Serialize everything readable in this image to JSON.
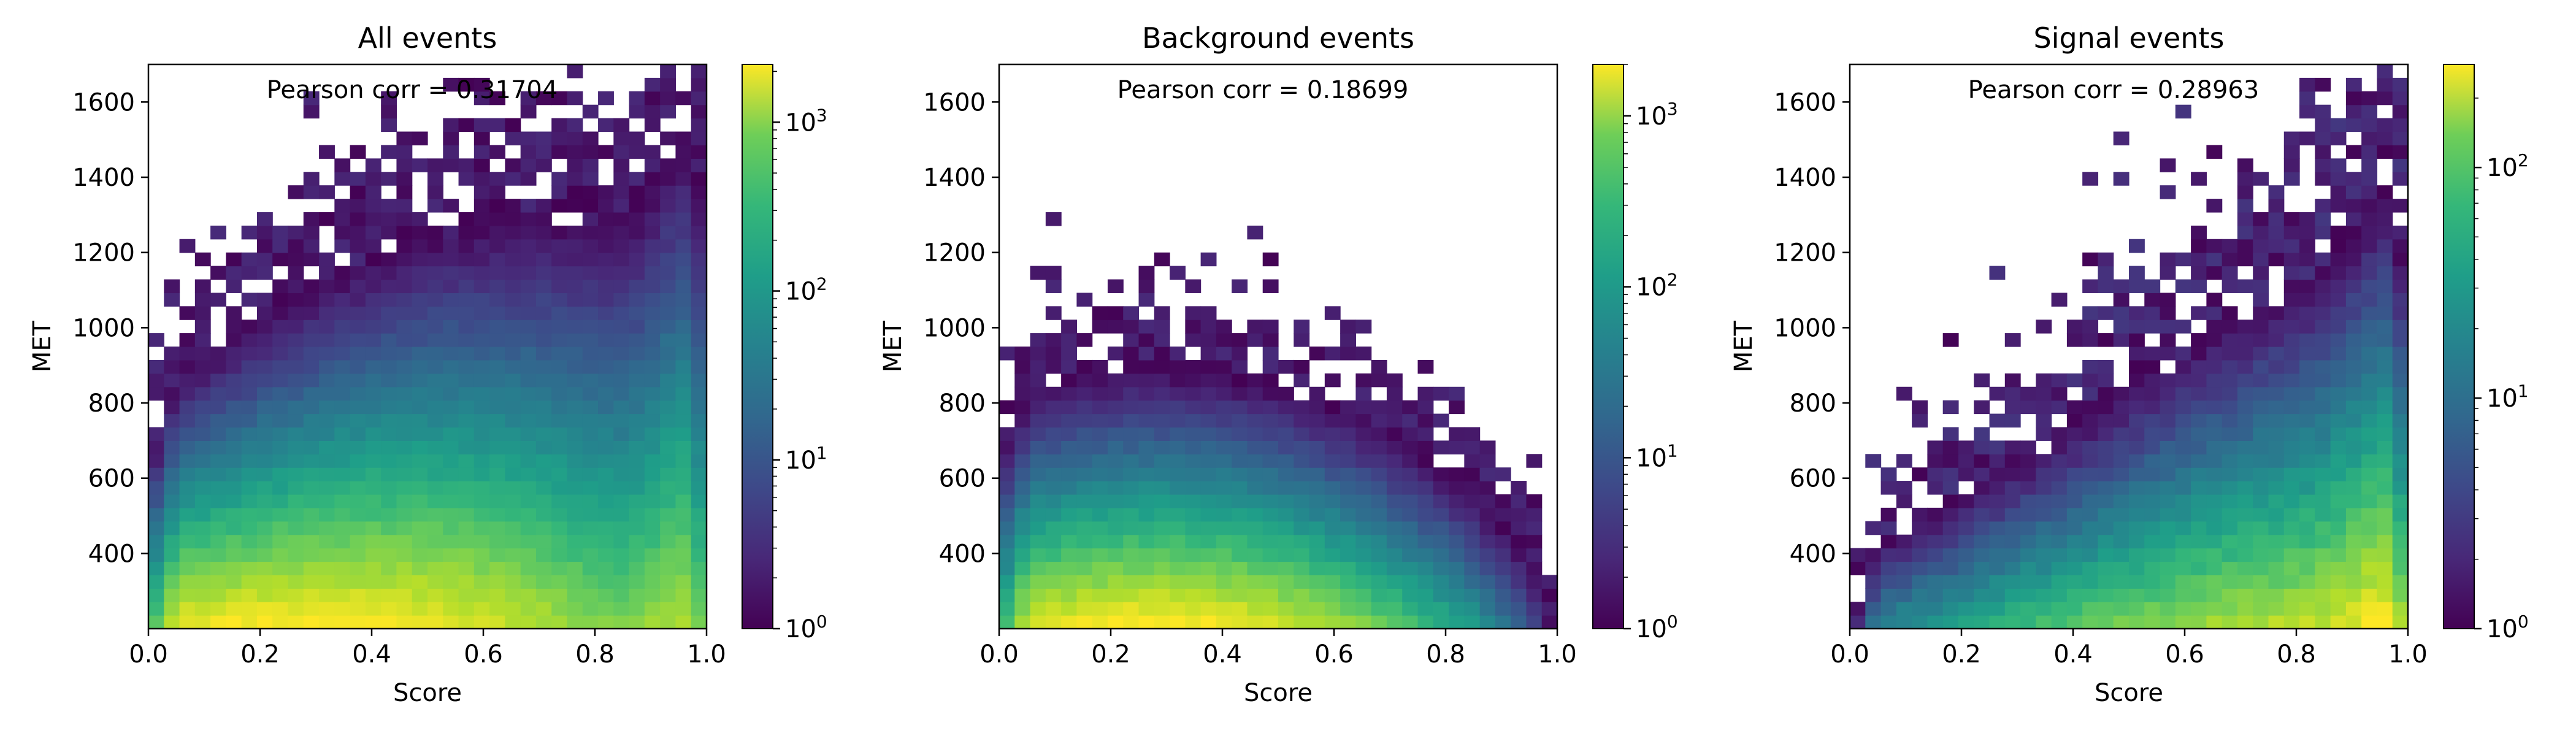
{
  "chart_data": [
    {
      "type": "heatmap",
      "title": "All events",
      "xlabel": "Score",
      "ylabel": "MET",
      "xlim": [
        0.0,
        1.0
      ],
      "ylim": [
        200,
        1700
      ],
      "xticks": [
        "0.0",
        "0.2",
        "0.4",
        "0.6",
        "0.8",
        "1.0"
      ],
      "yticks": [
        "400",
        "600",
        "800",
        "1000",
        "1200",
        "1400",
        "1600"
      ],
      "annotation": "Pearson corr = 0.31704",
      "colorbar": {
        "scale": "log",
        "colormap": "viridis",
        "range": [
          1,
          2200
        ],
        "tick_labels": [
          "10",
          "10",
          "10",
          "10"
        ],
        "tick_exponents": [
          "0",
          "1",
          "2",
          "3"
        ]
      },
      "profile": "all",
      "seed": 11
    },
    {
      "type": "heatmap",
      "title": "Background events",
      "xlabel": "Score",
      "ylabel": "MET",
      "xlim": [
        0.0,
        1.0
      ],
      "ylim": [
        200,
        1700
      ],
      "xticks": [
        "0.0",
        "0.2",
        "0.4",
        "0.6",
        "0.8",
        "1.0"
      ],
      "yticks": [
        "400",
        "600",
        "800",
        "1000",
        "1200",
        "1400",
        "1600"
      ],
      "annotation": "Pearson corr = 0.18699",
      "colorbar": {
        "scale": "log",
        "colormap": "viridis",
        "range": [
          1,
          2000
        ],
        "tick_labels": [
          "10",
          "10",
          "10",
          "10"
        ],
        "tick_exponents": [
          "0",
          "1",
          "2",
          "3"
        ]
      },
      "profile": "background",
      "seed": 23
    },
    {
      "type": "heatmap",
      "title": "Signal events",
      "xlabel": "Score",
      "ylabel": "MET",
      "xlim": [
        0.0,
        1.0
      ],
      "ylim": [
        200,
        1700
      ],
      "xticks": [
        "0.0",
        "0.2",
        "0.4",
        "0.6",
        "0.8",
        "1.0"
      ],
      "yticks": [
        "400",
        "600",
        "800",
        "1000",
        "1200",
        "1400",
        "1600"
      ],
      "annotation": "Pearson corr = 0.28963",
      "colorbar": {
        "scale": "log",
        "colormap": "viridis",
        "range": [
          1,
          280
        ],
        "tick_labels": [
          "10",
          "10",
          "10"
        ],
        "tick_exponents": [
          "0",
          "1",
          "2"
        ]
      },
      "profile": "signal",
      "seed": 37
    }
  ]
}
